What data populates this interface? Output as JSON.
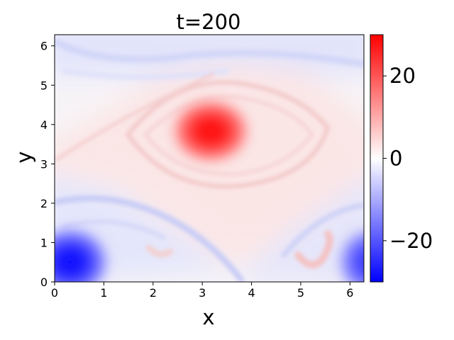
{
  "chart_data": {
    "type": "heatmap",
    "title": "t=200",
    "xlabel": "x",
    "ylabel": "y",
    "xlim": [
      0,
      6.283
    ],
    "ylim": [
      0,
      6.283
    ],
    "x_ticks": [
      0,
      1,
      2,
      3,
      4,
      5,
      6
    ],
    "y_ticks": [
      0,
      1,
      2,
      3,
      4,
      5,
      6
    ],
    "colorbar": {
      "range": [
        -30,
        30
      ],
      "ticks": [
        -20,
        0,
        20
      ],
      "tick_labels": [
        "−20",
        "0",
        "20"
      ],
      "colormap": "bwr",
      "low_color": "#0000ff",
      "mid_color": "#ffffff",
      "high_color": "#ff0000"
    },
    "features": [
      {
        "kind": "vortex",
        "x": 3.2,
        "y": 3.8,
        "value": 28
      },
      {
        "kind": "vortex",
        "x": 0.35,
        "y": 0.5,
        "value": -28
      },
      {
        "kind": "vortex",
        "x": 6.283,
        "y": 0.5,
        "value": -22
      },
      {
        "kind": "filament",
        "x": 5.4,
        "y": 0.6,
        "value": 8
      }
    ]
  }
}
